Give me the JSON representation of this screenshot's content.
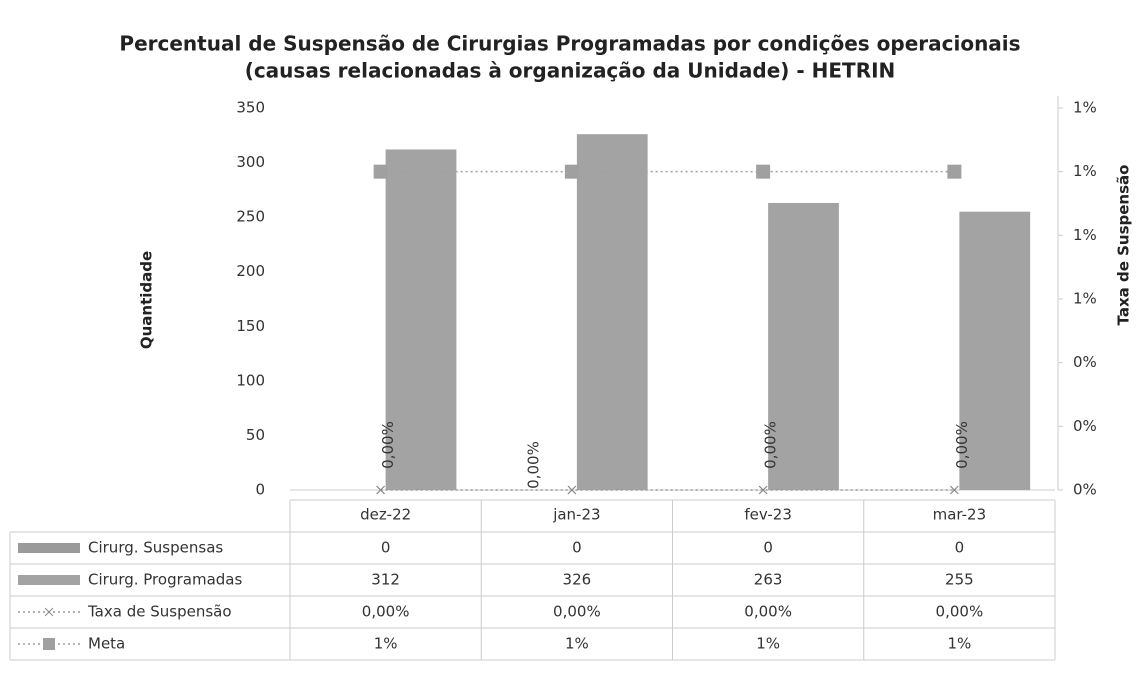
{
  "chart_data": {
    "type": "bar",
    "title": [
      "Percentual de Suspensão de Cirurgias Programadas por condições operacionais",
      "(causas relacionadas à organização da Unidade) - HETRIN"
    ],
    "ylabel": "Quantidade",
    "y2label": "Taxa de Suspensão",
    "categories": [
      "dez-22",
      "jan-23",
      "fev-23",
      "mar-23"
    ],
    "series": [
      {
        "name": "Cirurg. Suspensas",
        "type": "bar",
        "color": "#9a9a9a",
        "values": [
          0,
          0,
          0,
          0
        ]
      },
      {
        "name": "Cirurg. Programadas",
        "type": "bar",
        "color": "#a3a3a3",
        "values": [
          312,
          326,
          263,
          255
        ]
      },
      {
        "name": "Taxa de Suspensão",
        "type": "line",
        "axis": "y2",
        "color": "#9a9a9a",
        "values": [
          0,
          0,
          0,
          0
        ],
        "value_labels": [
          "0,00%",
          "0,00%",
          "0,00%",
          "0,00%"
        ]
      },
      {
        "name": "Meta",
        "type": "line",
        "axis": "y2",
        "color": "#a0a0a0",
        "values": [
          1,
          1,
          1,
          1
        ],
        "value_labels": [
          "1%",
          "1%",
          "1%",
          "1%"
        ]
      }
    ],
    "ylim": [
      0,
      350
    ],
    "yticks": [
      0,
      50,
      100,
      150,
      200,
      250,
      300,
      350
    ],
    "y2lim": [
      0,
      1.2
    ],
    "y2ticks": [
      {
        "value": 0,
        "label": "0%"
      },
      {
        "value": 0.2,
        "label": "0%"
      },
      {
        "value": 0.4,
        "label": "0%"
      },
      {
        "value": 0.6,
        "label": "1%"
      },
      {
        "value": 0.8,
        "label": "1%"
      },
      {
        "value": 1.0,
        "label": "1%"
      },
      {
        "value": 1.2,
        "label": "1%"
      }
    ],
    "grid": false
  }
}
